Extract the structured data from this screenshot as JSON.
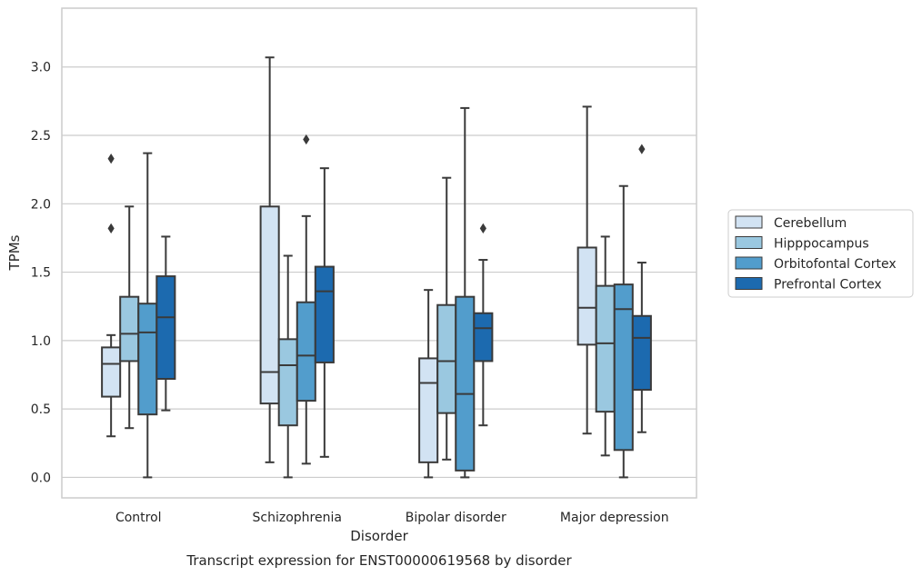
{
  "chart_data": {
    "type": "box",
    "caption": "Transcript expression for ENST00000619568 by disorder",
    "xlabel": "Disorder",
    "ylabel": "TPMs",
    "ylim": [
      -0.15,
      3.43
    ],
    "yticks": [
      0.0,
      0.5,
      1.0,
      1.5,
      2.0,
      2.5,
      3.0
    ],
    "ytick_labels": [
      "0.0",
      "0.5",
      "1.0",
      "1.5",
      "2.0",
      "2.5",
      "3.0"
    ],
    "grid": "horizontal",
    "legend_position": "right",
    "categories": [
      "Control",
      "Schizophrenia",
      "Bipolar disorder",
      "Major depression"
    ],
    "series": [
      {
        "name": "Cerebellum",
        "color": "#d2e3f3",
        "boxes": [
          {
            "whisker_low": 0.3,
            "q1": 0.59,
            "median": 0.83,
            "q3": 0.95,
            "whisker_high": 1.04,
            "outliers": [
              1.82,
              2.33
            ]
          },
          {
            "whisker_low": 0.11,
            "q1": 0.54,
            "median": 0.77,
            "q3": 1.98,
            "whisker_high": 3.07,
            "outliers": []
          },
          {
            "whisker_low": 0.0,
            "q1": 0.11,
            "median": 0.69,
            "q3": 0.87,
            "whisker_high": 1.37,
            "outliers": []
          },
          {
            "whisker_low": 0.32,
            "q1": 0.97,
            "median": 1.24,
            "q3": 1.68,
            "whisker_high": 2.71,
            "outliers": []
          }
        ]
      },
      {
        "name": "Hipppocampus",
        "color": "#9ac8e0",
        "boxes": [
          {
            "whisker_low": 0.36,
            "q1": 0.85,
            "median": 1.05,
            "q3": 1.32,
            "whisker_high": 1.98,
            "outliers": []
          },
          {
            "whisker_low": 0.0,
            "q1": 0.38,
            "median": 0.82,
            "q3": 1.01,
            "whisker_high": 1.62,
            "outliers": []
          },
          {
            "whisker_low": 0.13,
            "q1": 0.47,
            "median": 0.85,
            "q3": 1.26,
            "whisker_high": 2.19,
            "outliers": []
          },
          {
            "whisker_low": 0.16,
            "q1": 0.48,
            "median": 0.98,
            "q3": 1.4,
            "whisker_high": 1.76,
            "outliers": []
          }
        ]
      },
      {
        "name": "Orbitofontal Cortex",
        "color": "#529dcc",
        "boxes": [
          {
            "whisker_low": 0.0,
            "q1": 0.46,
            "median": 1.06,
            "q3": 1.27,
            "whisker_high": 2.37,
            "outliers": []
          },
          {
            "whisker_low": 0.1,
            "q1": 0.56,
            "median": 0.89,
            "q3": 1.28,
            "whisker_high": 1.91,
            "outliers": [
              2.47
            ]
          },
          {
            "whisker_low": 0.0,
            "q1": 0.05,
            "median": 0.61,
            "q3": 1.32,
            "whisker_high": 2.7,
            "outliers": []
          },
          {
            "whisker_low": 0.0,
            "q1": 0.2,
            "median": 1.23,
            "q3": 1.41,
            "whisker_high": 2.13,
            "outliers": []
          }
        ]
      },
      {
        "name": "Prefrontal Cortex",
        "color": "#1c6aaf",
        "boxes": [
          {
            "whisker_low": 0.49,
            "q1": 0.72,
            "median": 1.17,
            "q3": 1.47,
            "whisker_high": 1.76,
            "outliers": []
          },
          {
            "whisker_low": 0.15,
            "q1": 0.84,
            "median": 1.36,
            "q3": 1.54,
            "whisker_high": 2.26,
            "outliers": []
          },
          {
            "whisker_low": 0.38,
            "q1": 0.85,
            "median": 1.09,
            "q3": 1.2,
            "whisker_high": 1.59,
            "outliers": [
              1.82
            ]
          },
          {
            "whisker_low": 0.33,
            "q1": 0.64,
            "median": 1.02,
            "q3": 1.18,
            "whisker_high": 1.57,
            "outliers": [
              2.4
            ]
          }
        ]
      }
    ]
  }
}
